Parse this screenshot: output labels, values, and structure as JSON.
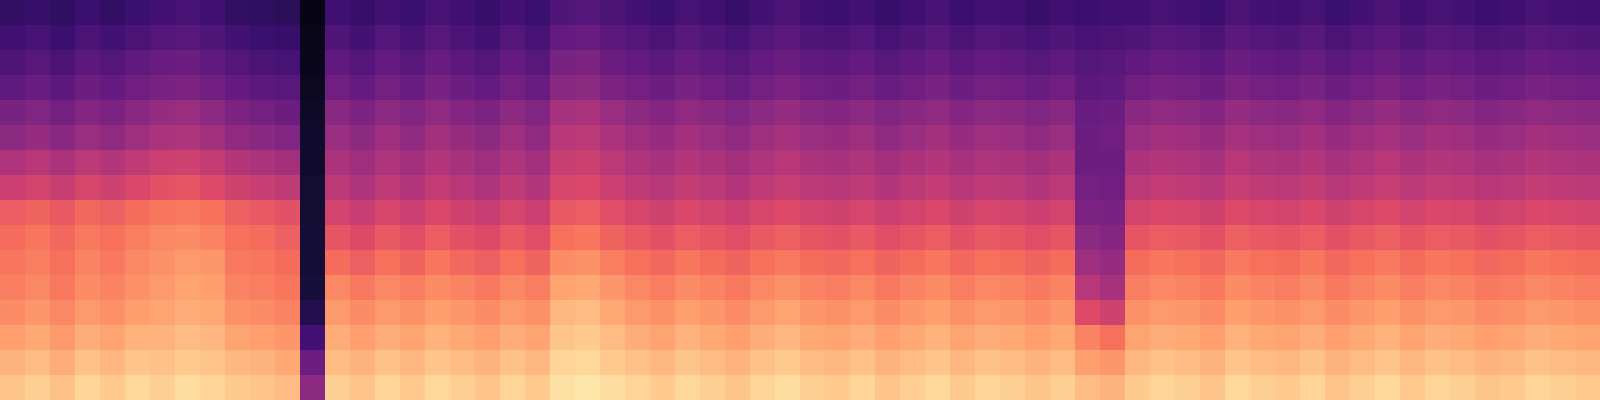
{
  "chart_data": {
    "type": "heatmap",
    "color": "magma",
    "tick_labels": false,
    "grid": false,
    "xlim": [
      -0.5,
      63.5
    ],
    "ylim": [
      -0.5,
      15.5
    ],
    "zlim": [
      0,
      100
    ],
    "cells": [
      [
        88,
        90,
        87,
        91,
        89,
        92,
        90,
        93,
        91,
        89,
        88,
        86,
        40,
        90,
        88,
        91,
        89,
        92,
        90,
        88,
        91,
        89,
        94,
        95,
        93,
        91,
        89,
        92,
        90,
        88,
        91,
        93,
        90,
        89,
        91,
        88,
        90,
        92,
        89,
        91,
        90,
        88,
        90,
        86,
        84,
        89,
        91,
        90,
        88,
        92,
        90,
        89,
        91,
        88,
        90,
        92,
        89,
        91,
        90,
        88,
        89,
        91,
        90,
        89
      ],
      [
        84,
        86,
        83,
        87,
        85,
        88,
        87,
        89,
        88,
        85,
        84,
        82,
        32,
        86,
        84,
        87,
        85,
        88,
        86,
        84,
        87,
        85,
        91,
        92,
        89,
        87,
        85,
        88,
        86,
        84,
        87,
        89,
        86,
        85,
        87,
        84,
        86,
        88,
        85,
        87,
        86,
        84,
        86,
        80,
        78,
        85,
        87,
        86,
        84,
        88,
        86,
        85,
        87,
        84,
        86,
        88,
        85,
        87,
        86,
        84,
        85,
        87,
        86,
        85
      ],
      [
        80,
        82,
        79,
        83,
        81,
        84,
        84,
        86,
        85,
        81,
        80,
        78,
        22,
        83,
        80,
        83,
        81,
        84,
        82,
        80,
        83,
        81,
        88,
        89,
        86,
        83,
        81,
        84,
        82,
        80,
        83,
        85,
        82,
        81,
        83,
        80,
        82,
        84,
        81,
        83,
        82,
        80,
        82,
        74,
        70,
        81,
        83,
        82,
        80,
        84,
        82,
        81,
        83,
        80,
        82,
        84,
        81,
        83,
        82,
        80,
        81,
        83,
        82,
        81
      ],
      [
        76,
        78,
        75,
        79,
        77,
        80,
        81,
        83,
        82,
        77,
        76,
        74,
        14,
        79,
        76,
        79,
        77,
        80,
        78,
        76,
        79,
        77,
        85,
        86,
        82,
        79,
        77,
        80,
        78,
        76,
        79,
        81,
        78,
        77,
        79,
        76,
        78,
        80,
        77,
        79,
        78,
        76,
        78,
        60,
        56,
        77,
        79,
        78,
        76,
        80,
        78,
        77,
        79,
        76,
        78,
        80,
        77,
        79,
        78,
        76,
        77,
        79,
        78,
        77
      ],
      [
        73,
        75,
        72,
        76,
        74,
        77,
        79,
        81,
        80,
        74,
        73,
        71,
        11,
        75,
        72,
        75,
        73,
        76,
        74,
        72,
        75,
        73,
        81,
        82,
        78,
        75,
        73,
        76,
        74,
        72,
        75,
        77,
        74,
        73,
        75,
        72,
        74,
        76,
        73,
        75,
        74,
        72,
        74,
        50,
        46,
        73,
        75,
        74,
        72,
        76,
        74,
        73,
        75,
        72,
        74,
        76,
        73,
        75,
        74,
        72,
        73,
        75,
        74,
        73
      ],
      [
        71,
        73,
        70,
        74,
        72,
        75,
        77,
        79,
        78,
        72,
        71,
        69,
        10,
        69,
        66,
        70,
        67,
        71,
        68,
        66,
        70,
        67,
        76,
        77,
        73,
        70,
        68,
        71,
        69,
        67,
        70,
        72,
        69,
        68,
        70,
        67,
        69,
        71,
        68,
        70,
        69,
        67,
        69,
        44,
        42,
        69,
        71,
        70,
        68,
        72,
        70,
        69,
        71,
        68,
        70,
        72,
        69,
        71,
        70,
        68,
        69,
        71,
        70,
        69
      ],
      [
        69,
        71,
        68,
        72,
        70,
        73,
        75,
        76,
        74,
        70,
        69,
        66,
        10,
        63,
        60,
        64,
        61,
        65,
        62,
        60,
        64,
        61,
        70,
        71,
        67,
        64,
        62,
        65,
        63,
        61,
        64,
        66,
        63,
        62,
        64,
        61,
        63,
        65,
        62,
        64,
        63,
        61,
        63,
        40,
        38,
        63,
        65,
        64,
        62,
        66,
        64,
        63,
        65,
        62,
        64,
        66,
        63,
        65,
        64,
        62,
        63,
        65,
        64,
        63
      ],
      [
        65,
        67,
        64,
        68,
        66,
        69,
        71,
        72,
        70,
        66,
        64,
        62,
        9,
        57,
        54,
        58,
        55,
        59,
        56,
        54,
        58,
        55,
        64,
        65,
        61,
        58,
        56,
        59,
        57,
        55,
        58,
        60,
        57,
        56,
        58,
        55,
        57,
        59,
        56,
        58,
        57,
        55,
        57,
        36,
        35,
        57,
        59,
        58,
        56,
        60,
        58,
        57,
        59,
        56,
        58,
        60,
        57,
        59,
        58,
        56,
        57,
        59,
        58,
        57
      ],
      [
        55,
        57,
        54,
        58,
        56,
        59,
        62,
        63,
        60,
        56,
        54,
        52,
        9,
        51,
        48,
        52,
        49,
        53,
        50,
        48,
        52,
        49,
        58,
        59,
        55,
        52,
        50,
        53,
        51,
        49,
        52,
        54,
        51,
        50,
        52,
        49,
        51,
        53,
        50,
        52,
        51,
        49,
        51,
        34,
        33,
        51,
        53,
        52,
        50,
        54,
        52,
        51,
        53,
        50,
        52,
        54,
        51,
        53,
        52,
        50,
        51,
        53,
        52,
        51
      ],
      [
        48,
        50,
        47,
        51,
        49,
        52,
        55,
        56,
        53,
        49,
        47,
        45,
        8,
        47,
        44,
        48,
        45,
        49,
        46,
        44,
        48,
        45,
        54,
        55,
        51,
        48,
        46,
        49,
        47,
        45,
        48,
        50,
        47,
        46,
        48,
        45,
        47,
        49,
        46,
        48,
        47,
        45,
        47,
        32,
        32,
        47,
        49,
        48,
        46,
        50,
        48,
        47,
        49,
        46,
        48,
        50,
        47,
        49,
        48,
        46,
        47,
        49,
        48,
        47
      ],
      [
        40,
        42,
        39,
        43,
        41,
        44,
        47,
        48,
        45,
        41,
        39,
        37,
        8,
        43,
        40,
        44,
        41,
        45,
        42,
        40,
        44,
        41,
        50,
        51,
        47,
        44,
        42,
        45,
        43,
        41,
        44,
        46,
        43,
        42,
        44,
        41,
        43,
        45,
        42,
        44,
        43,
        41,
        43,
        32,
        33,
        43,
        45,
        44,
        42,
        46,
        44,
        43,
        45,
        42,
        44,
        46,
        43,
        45,
        44,
        42,
        43,
        45,
        44,
        43
      ],
      [
        35,
        37,
        34,
        38,
        36,
        39,
        42,
        43,
        40,
        36,
        34,
        32,
        7,
        39,
        36,
        40,
        37,
        41,
        38,
        36,
        40,
        37,
        46,
        47,
        43,
        40,
        38,
        41,
        39,
        37,
        40,
        42,
        39,
        38,
        40,
        37,
        39,
        41,
        38,
        40,
        39,
        37,
        39,
        31,
        32,
        39,
        41,
        40,
        38,
        42,
        40,
        39,
        41,
        38,
        40,
        42,
        39,
        41,
        40,
        38,
        39,
        41,
        40,
        39
      ],
      [
        29,
        31,
        28,
        32,
        30,
        33,
        35,
        36,
        33,
        30,
        28,
        27,
        6,
        33,
        30,
        34,
        31,
        35,
        32,
        30,
        34,
        31,
        39,
        40,
        36,
        34,
        32,
        35,
        33,
        31,
        34,
        36,
        33,
        32,
        34,
        31,
        33,
        35,
        32,
        34,
        33,
        31,
        33,
        28,
        29,
        33,
        35,
        34,
        32,
        36,
        34,
        33,
        35,
        32,
        34,
        36,
        33,
        35,
        34,
        32,
        33,
        35,
        34,
        33
      ],
      [
        25,
        27,
        24,
        28,
        26,
        29,
        31,
        32,
        29,
        26,
        24,
        23,
        5,
        29,
        26,
        30,
        27,
        31,
        28,
        26,
        30,
        27,
        35,
        36,
        32,
        30,
        28,
        31,
        29,
        27,
        30,
        32,
        29,
        28,
        30,
        27,
        29,
        31,
        28,
        30,
        29,
        27,
        29,
        26,
        27,
        29,
        31,
        30,
        28,
        32,
        30,
        29,
        31,
        28,
        30,
        32,
        29,
        31,
        30,
        28,
        29,
        31,
        30,
        29
      ],
      [
        21,
        23,
        20,
        24,
        22,
        24,
        26,
        27,
        25,
        22,
        20,
        19,
        4,
        25,
        22,
        26,
        23,
        27,
        24,
        22,
        26,
        23,
        30,
        31,
        28,
        26,
        24,
        27,
        25,
        23,
        26,
        28,
        25,
        24,
        26,
        23,
        25,
        27,
        24,
        26,
        25,
        23,
        25,
        23,
        24,
        25,
        27,
        26,
        24,
        28,
        26,
        25,
        27,
        24,
        26,
        28,
        25,
        27,
        26,
        24,
        25,
        27,
        26,
        25
      ],
      [
        18,
        19,
        17,
        20,
        18,
        20,
        22,
        23,
        21,
        18,
        17,
        16,
        3,
        21,
        19,
        22,
        20,
        23,
        21,
        19,
        22,
        20,
        25,
        26,
        24,
        22,
        20,
        23,
        21,
        19,
        22,
        24,
        21,
        20,
        22,
        19,
        21,
        23,
        20,
        22,
        21,
        19,
        21,
        20,
        21,
        21,
        23,
        22,
        20,
        24,
        22,
        21,
        23,
        20,
        22,
        24,
        21,
        23,
        22,
        20,
        21,
        23,
        22,
        21
      ]
    ]
  }
}
